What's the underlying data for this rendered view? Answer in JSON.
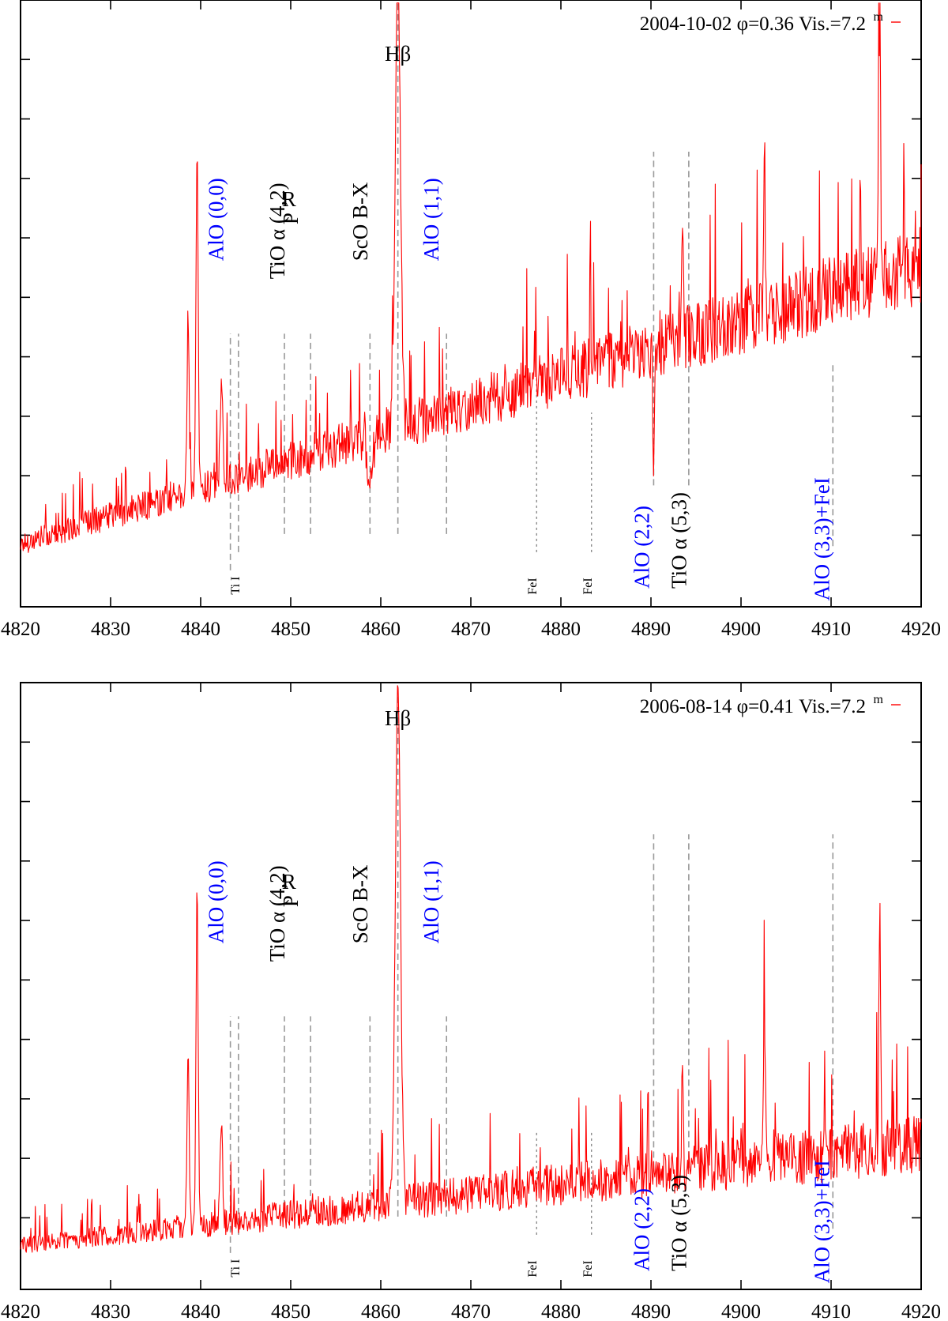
{
  "chart_data": [
    {
      "type": "line",
      "title": "",
      "xlabel": "",
      "ylabel": "",
      "xlim": [
        4820,
        4920
      ],
      "ylim": [
        0,
        1
      ],
      "x_ticks": [
        4820,
        4830,
        4840,
        4850,
        4860,
        4870,
        4880,
        4890,
        4900,
        4910,
        4920
      ],
      "x_tick_labels": [
        "4820",
        "4830",
        "4840",
        "4850",
        "4860",
        "4870",
        "4880",
        "4890",
        "4900",
        "4910",
        "4920"
      ],
      "series_color": "#ff0000",
      "legend": {
        "label_main": "2004-10-02 φ=0.36 Vis.=7.2",
        "label_sup": "m"
      },
      "spectrum": {
        "seed": 17,
        "base_start": 0.1,
        "base_end": 0.55,
        "noise": 0.06,
        "lines": [
          {
            "x": 4839.6,
            "h": 0.55,
            "w": 0.12
          },
          {
            "x": 4838.6,
            "h": 0.28,
            "w": 0.12
          },
          {
            "x": 4842.3,
            "h": 0.16,
            "w": 0.15
          },
          {
            "x": 4861.9,
            "h": 0.75,
            "w": 0.28
          },
          {
            "x": 4915.4,
            "h": 0.45,
            "w": 0.1
          },
          {
            "x": 4902.6,
            "h": 0.25,
            "w": 0.1
          },
          {
            "x": 4893.5,
            "h": 0.15,
            "w": 0.1
          },
          {
            "x": 4890.3,
            "h": -0.2,
            "w": 0.08
          },
          {
            "x": 4858.8,
            "h": -0.06,
            "w": 0.35
          }
        ]
      },
      "annotations": [
        {
          "label": "Hβ",
          "color": "#000000",
          "x": 4861.9,
          "y": 0.9,
          "rotate": false
        },
        {
          "label": "AlO (0,0)",
          "color": "#0000ff",
          "x": 4842.5,
          "y": 0.57,
          "rotate": true
        },
        {
          "label": "TiO α (4,2)",
          "color": "#000000",
          "x": 4849.3,
          "y": 0.54,
          "rotate": true
        },
        {
          "label": "R",
          "color": "#000000",
          "x": 4849.8,
          "y": 0.66,
          "rotate": false
        },
        {
          "label": "P",
          "color": "#000000",
          "x": 4850.8,
          "y": 0.63,
          "rotate": true
        },
        {
          "label": "ScO B-X",
          "color": "#000000",
          "x": 4858.5,
          "y": 0.57,
          "rotate": true
        },
        {
          "label": "AlO (1,1)",
          "color": "#0000ff",
          "x": 4866.4,
          "y": 0.57,
          "rotate": true
        },
        {
          "label": "AlO (2,2)",
          "color": "#0000ff",
          "x": 4889.8,
          "y": 0.03,
          "rotate": true
        },
        {
          "label": "TiO α (5,3)",
          "color": "#000000",
          "x": 4893.9,
          "y": 0.03,
          "rotate": true
        },
        {
          "label": "AlO (3,3)+FeI",
          "color": "#0000ff",
          "x": 4909.8,
          "y": 0.01,
          "rotate": true
        },
        {
          "label": "Ti I",
          "color": "#000000",
          "x": 4844.3,
          "y": 0.02,
          "rotate": true,
          "small": true
        },
        {
          "label": "FeI",
          "color": "#000000",
          "x": 4877.3,
          "y": 0.02,
          "rotate": true,
          "small": true
        },
        {
          "label": "FeI",
          "color": "#000000",
          "x": 4883.4,
          "y": 0.02,
          "rotate": true,
          "small": true
        }
      ],
      "markers": [
        {
          "x": 4843.3,
          "y1": 0.06,
          "y2": 0.45,
          "style": "dash"
        },
        {
          "x": 4844.2,
          "y1": 0.09,
          "y2": 0.45,
          "style": "dash"
        },
        {
          "x": 4849.3,
          "y1": 0.12,
          "y2": 0.45,
          "style": "dash"
        },
        {
          "x": 4852.2,
          "y1": 0.12,
          "y2": 0.45,
          "style": "dash"
        },
        {
          "x": 4858.8,
          "y1": 0.12,
          "y2": 0.45,
          "style": "dash"
        },
        {
          "x": 4861.9,
          "y1": 0.12,
          "y2": 1.0,
          "style": "dash"
        },
        {
          "x": 4867.3,
          "y1": 0.12,
          "y2": 0.45,
          "style": "dash"
        },
        {
          "x": 4877.3,
          "y1": 0.09,
          "y2": 0.38,
          "style": "fine"
        },
        {
          "x": 4883.4,
          "y1": 0.09,
          "y2": 0.32,
          "style": "fine"
        },
        {
          "x": 4890.3,
          "y1": 0.2,
          "y2": 0.75,
          "style": "dash"
        },
        {
          "x": 4894.2,
          "y1": 0.2,
          "y2": 0.75,
          "style": "dash"
        },
        {
          "x": 4910.2,
          "y1": 0.1,
          "y2": 0.4,
          "style": "dash"
        }
      ]
    },
    {
      "type": "line",
      "title": "",
      "xlabel": "",
      "ylabel": "",
      "xlim": [
        4820,
        4920
      ],
      "ylim": [
        0,
        1
      ],
      "x_ticks": [
        4820,
        4830,
        4840,
        4850,
        4860,
        4870,
        4880,
        4890,
        4900,
        4910,
        4920
      ],
      "x_tick_labels": [
        "4820",
        "4830",
        "4840",
        "4850",
        "4860",
        "4870",
        "4880",
        "4890",
        "4900",
        "4910",
        "4920"
      ],
      "series_color": "#ff0000",
      "legend": {
        "label_main": "2006-08-14 φ=0.41 Vis.=7.2",
        "label_sup": "m"
      },
      "spectrum": {
        "seed": 29,
        "base_start": 0.07,
        "base_end": 0.23,
        "noise": 0.045,
        "lines": [
          {
            "x": 4839.6,
            "h": 0.55,
            "w": 0.12
          },
          {
            "x": 4838.6,
            "h": 0.3,
            "w": 0.12
          },
          {
            "x": 4842.3,
            "h": 0.15,
            "w": 0.15
          },
          {
            "x": 4861.9,
            "h": 0.88,
            "w": 0.28
          },
          {
            "x": 4915.4,
            "h": 0.4,
            "w": 0.1
          },
          {
            "x": 4902.6,
            "h": 0.22,
            "w": 0.1
          },
          {
            "x": 4893.5,
            "h": 0.15,
            "w": 0.1
          }
        ]
      },
      "annotations": [
        {
          "label": "Hβ",
          "color": "#000000",
          "x": 4861.9,
          "y": 0.93,
          "rotate": false
        },
        {
          "label": "AlO (0,0)",
          "color": "#0000ff",
          "x": 4842.5,
          "y": 0.57,
          "rotate": true
        },
        {
          "label": "TiO α (4,2)",
          "color": "#000000",
          "x": 4849.3,
          "y": 0.54,
          "rotate": true
        },
        {
          "label": "R",
          "color": "#000000",
          "x": 4849.8,
          "y": 0.66,
          "rotate": false
        },
        {
          "label": "P",
          "color": "#000000",
          "x": 4850.8,
          "y": 0.63,
          "rotate": true
        },
        {
          "label": "ScO B-X",
          "color": "#000000",
          "x": 4858.5,
          "y": 0.57,
          "rotate": true
        },
        {
          "label": "AlO (1,1)",
          "color": "#0000ff",
          "x": 4866.4,
          "y": 0.57,
          "rotate": true
        },
        {
          "label": "AlO (2,2)",
          "color": "#0000ff",
          "x": 4889.8,
          "y": 0.03,
          "rotate": true
        },
        {
          "label": "TiO α (5,3)",
          "color": "#000000",
          "x": 4893.9,
          "y": 0.03,
          "rotate": true
        },
        {
          "label": "AlO (3,3)+FeI",
          "color": "#0000ff",
          "x": 4909.8,
          "y": 0.01,
          "rotate": true
        },
        {
          "label": "Ti I",
          "color": "#000000",
          "x": 4844.3,
          "y": 0.02,
          "rotate": true,
          "small": true
        },
        {
          "label": "FeI",
          "color": "#000000",
          "x": 4877.3,
          "y": 0.02,
          "rotate": true,
          "small": true
        },
        {
          "label": "FeI",
          "color": "#000000",
          "x": 4883.4,
          "y": 0.02,
          "rotate": true,
          "small": true
        }
      ],
      "markers": [
        {
          "x": 4843.3,
          "y1": 0.06,
          "y2": 0.45,
          "style": "dash"
        },
        {
          "x": 4844.2,
          "y1": 0.09,
          "y2": 0.45,
          "style": "dash"
        },
        {
          "x": 4849.3,
          "y1": 0.12,
          "y2": 0.45,
          "style": "dash"
        },
        {
          "x": 4852.2,
          "y1": 0.12,
          "y2": 0.45,
          "style": "dash"
        },
        {
          "x": 4858.8,
          "y1": 0.12,
          "y2": 0.45,
          "style": "dash"
        },
        {
          "x": 4861.9,
          "y1": 0.12,
          "y2": 1.0,
          "style": "dash"
        },
        {
          "x": 4867.3,
          "y1": 0.12,
          "y2": 0.45,
          "style": "dash"
        },
        {
          "x": 4877.3,
          "y1": 0.09,
          "y2": 0.26,
          "style": "fine"
        },
        {
          "x": 4883.4,
          "y1": 0.09,
          "y2": 0.26,
          "style": "fine"
        },
        {
          "x": 4890.3,
          "y1": 0.2,
          "y2": 0.75,
          "style": "dash"
        },
        {
          "x": 4894.2,
          "y1": 0.2,
          "y2": 0.75,
          "style": "dash"
        },
        {
          "x": 4910.2,
          "y1": 0.1,
          "y2": 0.75,
          "style": "dash"
        }
      ]
    }
  ]
}
